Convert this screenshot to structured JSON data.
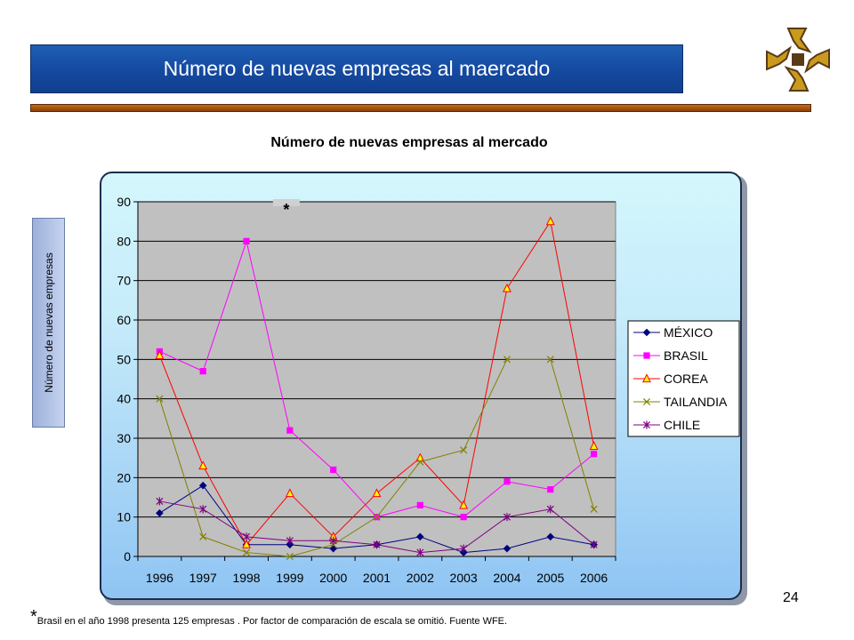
{
  "slide": {
    "banner_title": "Número de nuevas empresas al maercado",
    "page_number": "24",
    "footnote_marker": "*",
    "footnote_text": "Brasil en el año 1998 presenta 125 empresas . Por factor de comparación de escala se omitió.  Fuente WFE."
  },
  "colors": {
    "banner": "#1549a0",
    "rule_bar": "#a4520f",
    "logo_gold": "#c99a1e",
    "logo_dark": "#5a3a14",
    "plot_area": "#c0c0c0"
  },
  "chart_data": {
    "type": "line",
    "title": "Número de nuevas empresas al mercado",
    "ylabel": "Número de nuevas empresas",
    "xlabel": "",
    "x": [
      "1996",
      "1997",
      "1998",
      "1999",
      "2000",
      "2001",
      "2002",
      "2003",
      "2004",
      "2005",
      "2006"
    ],
    "ylim": [
      0,
      90
    ],
    "yticks": [
      0,
      10,
      20,
      30,
      40,
      50,
      60,
      70,
      80,
      90
    ],
    "grid": true,
    "legend_position": "right",
    "annotation": "*",
    "series": [
      {
        "name": "MÉXICO",
        "color": "#000080",
        "marker": "diamond",
        "values": [
          11,
          18,
          3,
          3,
          2,
          3,
          5,
          1,
          2,
          5,
          3
        ]
      },
      {
        "name": "BRASIL",
        "color": "#ff00ff",
        "marker": "square",
        "values": [
          52,
          47,
          80,
          32,
          22,
          10,
          13,
          10,
          19,
          17,
          26
        ]
      },
      {
        "name": "COREA",
        "color": "#ff0000",
        "marker": "triangle",
        "values": [
          51,
          23,
          3,
          16,
          5,
          16,
          25,
          13,
          68,
          85,
          28
        ]
      },
      {
        "name": "TAILANDIA",
        "color": "#808000",
        "marker": "x",
        "values": [
          40,
          5,
          1,
          0,
          3,
          10,
          24,
          27,
          50,
          50,
          12
        ]
      },
      {
        "name": "CHILE",
        "color": "#800080",
        "marker": "star",
        "values": [
          14,
          12,
          5,
          4,
          4,
          3,
          1,
          2,
          10,
          12,
          3
        ]
      }
    ]
  }
}
